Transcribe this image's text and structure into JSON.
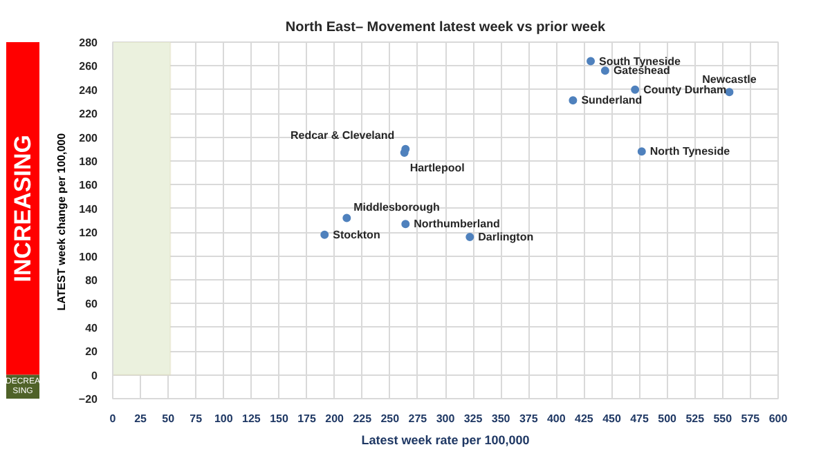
{
  "chart_data": {
    "type": "scatter",
    "title": "North East– Movement latest week vs prior week",
    "xlabel": "Latest week rate per 100,000",
    "ylabel": "LATEST week change  per 100,000",
    "x": [
      191,
      211,
      264,
      263,
      264,
      322,
      431,
      444,
      471,
      415,
      556,
      477
    ],
    "values": [
      118,
      132,
      190,
      187,
      127,
      116,
      264,
      256,
      240,
      231,
      238,
      188
    ],
    "value_labels": [
      "Stockton",
      "Middlesborough",
      "Redcar & Cleveland",
      "Hartlepool",
      "Northumberland",
      "Darlington",
      "South Tyneside",
      "Gateshead",
      "County Durham",
      "Sunderland",
      "Newcastle",
      "North Tyneside"
    ],
    "color": "#4f81bd",
    "marker": "circle",
    "grid": true,
    "xlim": [
      0,
      600
    ],
    "ylim": [
      -20,
      280
    ],
    "xticks": [
      0,
      25,
      50,
      75,
      100,
      125,
      150,
      175,
      200,
      225,
      250,
      275,
      300,
      325,
      350,
      375,
      400,
      425,
      450,
      475,
      500,
      525,
      550,
      575,
      600
    ],
    "yticks": [
      -20,
      0,
      20,
      40,
      60,
      80,
      100,
      120,
      140,
      160,
      180,
      200,
      220,
      240,
      260,
      280
    ],
    "bands": [
      {
        "axis": "x",
        "from": 0,
        "to": 52,
        "color": "#ebf1de"
      }
    ],
    "annotations": [
      "INCREASING",
      "DECREASING"
    ]
  }
}
